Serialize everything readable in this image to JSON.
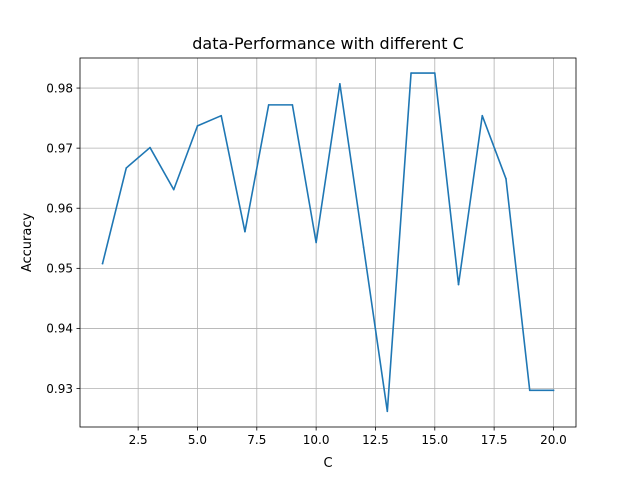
{
  "chart_data": {
    "type": "line",
    "title": "data-Performance with different C",
    "xlabel": "C",
    "ylabel": "Accuracy",
    "xlim": [
      0.05,
      20.95
    ],
    "ylim": [
      0.9236,
      0.985
    ],
    "xticks": [
      2.5,
      5.0,
      7.5,
      10.0,
      12.5,
      15.0,
      17.5,
      20.0
    ],
    "xtick_labels": [
      "2.5",
      "5.0",
      "7.5",
      "10.0",
      "12.5",
      "15.0",
      "17.5",
      "20.0"
    ],
    "yticks": [
      0.93,
      0.94,
      0.95,
      0.96,
      0.97,
      0.98
    ],
    "ytick_labels": [
      "0.93",
      "0.94",
      "0.95",
      "0.96",
      "0.97",
      "0.98"
    ],
    "grid": true,
    "series": [
      {
        "color": "#1f77b4",
        "x": [
          1,
          2,
          3,
          4,
          5,
          6,
          7,
          8,
          9,
          10,
          11,
          12,
          13,
          14,
          15,
          16,
          17,
          18,
          19,
          20
        ],
        "y": [
          0.9508,
          0.9667,
          0.9701,
          0.9631,
          0.9737,
          0.9754,
          0.9561,
          0.9772,
          0.9772,
          0.9543,
          0.9807,
          0.9535,
          0.9262,
          0.9825,
          0.9825,
          0.9473,
          0.9754,
          0.9649,
          0.9297,
          0.9297
        ]
      }
    ]
  }
}
